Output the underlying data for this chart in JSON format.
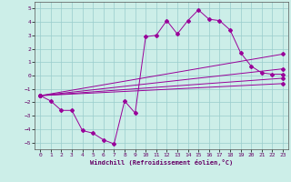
{
  "xlabel": "Windchill (Refroidissement éolien,°C)",
  "xlim": [
    -0.5,
    23.5
  ],
  "ylim": [
    -5.5,
    5.5
  ],
  "yticks": [
    -5,
    -4,
    -3,
    -2,
    -1,
    0,
    1,
    2,
    3,
    4,
    5
  ],
  "xticks": [
    0,
    1,
    2,
    3,
    4,
    5,
    6,
    7,
    8,
    9,
    10,
    11,
    12,
    13,
    14,
    15,
    16,
    17,
    18,
    19,
    20,
    21,
    22,
    23
  ],
  "bg_color": "#cceee8",
  "line_color": "#990099",
  "grid_color": "#99cccc",
  "series": {
    "main": {
      "x": [
        0,
        1,
        2,
        3,
        4,
        5,
        6,
        7,
        8,
        9,
        10,
        11,
        12,
        13,
        14,
        15,
        16,
        17,
        18,
        19,
        20,
        21,
        22,
        23
      ],
      "y": [
        -1.5,
        -1.9,
        -2.6,
        -2.6,
        -4.1,
        -4.3,
        -4.8,
        -5.1,
        -1.9,
        -2.8,
        2.9,
        3.0,
        4.1,
        3.1,
        4.1,
        4.9,
        4.2,
        4.1,
        3.4,
        1.7,
        0.7,
        0.2,
        0.1,
        0.1
      ]
    },
    "upper": {
      "x": [
        0,
        23
      ],
      "y": [
        -1.5,
        1.6
      ]
    },
    "mid_upper": {
      "x": [
        0,
        23
      ],
      "y": [
        -1.5,
        0.5
      ]
    },
    "mid_lower": {
      "x": [
        0,
        23
      ],
      "y": [
        -1.5,
        -0.2
      ]
    },
    "lower": {
      "x": [
        0,
        23
      ],
      "y": [
        -1.5,
        -0.6
      ]
    }
  }
}
